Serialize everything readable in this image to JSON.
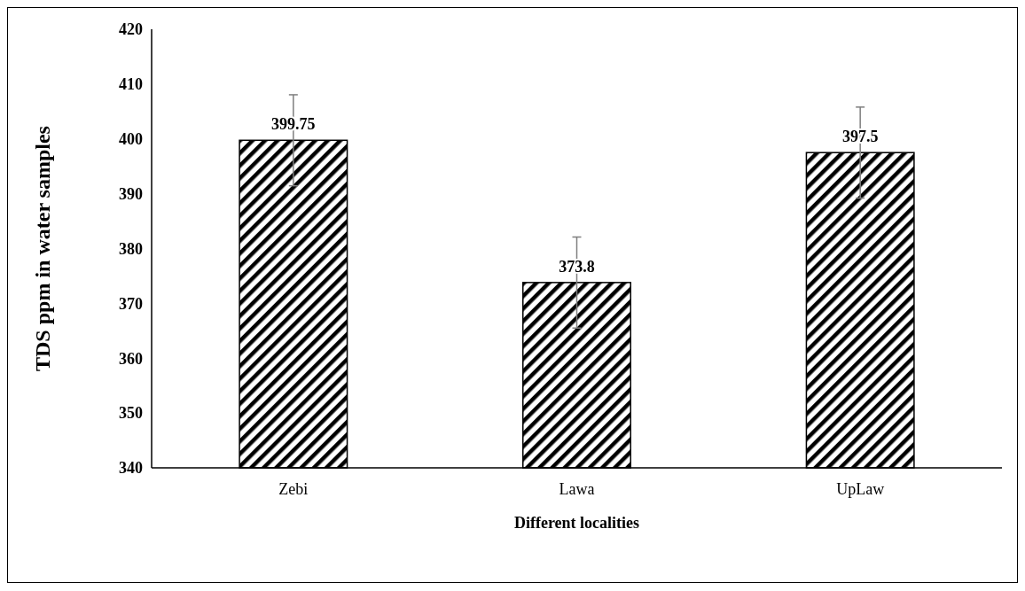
{
  "chart_data": {
    "type": "bar",
    "xlabel": "Different localities",
    "ylabel": "TDS ppm in water samples",
    "categories": [
      "Zebi",
      "Lawa",
      "UpLaw"
    ],
    "values": [
      399.75,
      373.8,
      397.5
    ],
    "errors": [
      8.3,
      8.3,
      8.3
    ],
    "color": "#000000",
    "ylim": [
      340,
      420
    ],
    "yticks": [
      340,
      350,
      360,
      370,
      380,
      390,
      400,
      410,
      420
    ],
    "data_labels": true
  }
}
